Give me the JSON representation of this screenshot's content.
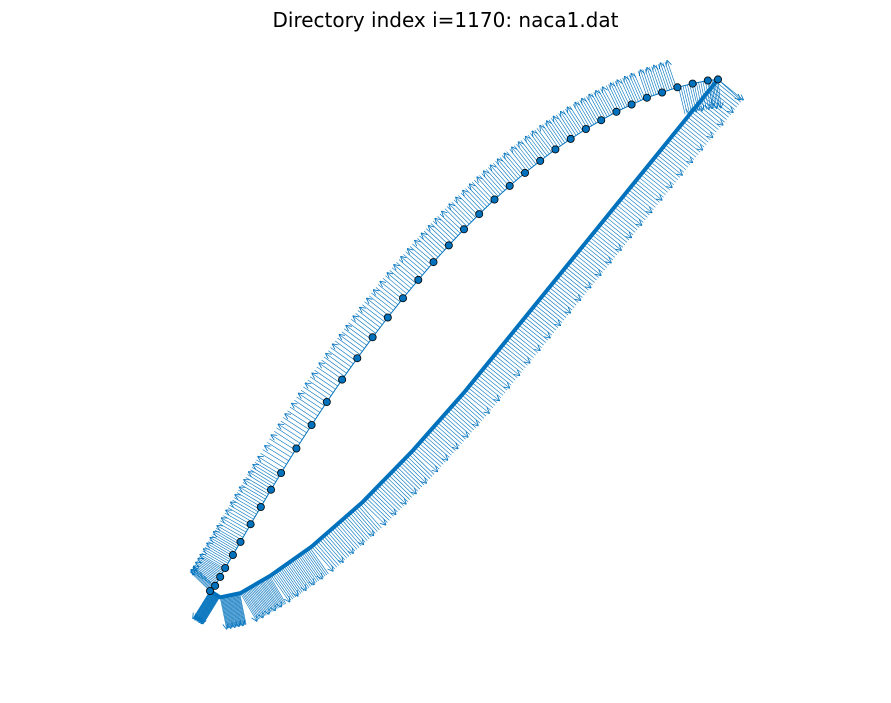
{
  "figure": {
    "title": "Directory index i=1170: naca1.dat",
    "colors": {
      "vector": "#0072bd",
      "airfoil_line": "#0072bd",
      "marker_face": "#0072bd",
      "marker_edge": "#000000",
      "background": "#ffffff"
    }
  },
  "chart_data": {
    "type": "scatter",
    "title": "Directory index i=1170: naca1.dat",
    "xlabel": "",
    "ylabel": "",
    "axes_visible": false,
    "grid": false,
    "legend": "none",
    "xlim": [
      -0.05,
      1.05
    ],
    "ylim": [
      -0.05,
      1.0
    ],
    "series": [
      {
        "kind": "curve",
        "x": [
          1.0,
          0.98,
          0.95,
          0.92,
          0.89,
          0.86,
          0.83,
          0.8,
          0.77,
          0.74,
          0.71,
          0.68,
          0.65,
          0.62,
          0.59,
          0.56,
          0.53,
          0.5,
          0.47,
          0.44,
          0.41,
          0.38,
          0.35,
          0.32,
          0.29,
          0.26,
          0.23,
          0.2,
          0.17,
          0.14,
          0.12,
          0.1,
          0.08,
          0.06,
          0.045,
          0.03,
          0.02,
          0.01,
          0.0
        ],
        "y": [
          0.98,
          0.978,
          0.972,
          0.965,
          0.955,
          0.945,
          0.932,
          0.918,
          0.902,
          0.885,
          0.866,
          0.846,
          0.824,
          0.801,
          0.776,
          0.75,
          0.722,
          0.693,
          0.662,
          0.63,
          0.596,
          0.561,
          0.524,
          0.486,
          0.446,
          0.405,
          0.362,
          0.318,
          0.273,
          0.226,
          0.194,
          0.161,
          0.128,
          0.094,
          0.069,
          0.044,
          0.027,
          0.01,
          0.0
        ]
      },
      {
        "kind": "curve",
        "x": [
          0.0,
          0.02,
          0.06,
          0.12,
          0.2,
          0.3,
          0.4,
          0.5,
          0.6,
          0.7,
          0.8,
          0.9,
          1.0
        ],
        "y": [
          0.0,
          -0.012,
          -0.004,
          0.03,
          0.085,
          0.17,
          0.27,
          0.38,
          0.5,
          0.62,
          0.74,
          0.86,
          0.98
        ]
      }
    ]
  }
}
